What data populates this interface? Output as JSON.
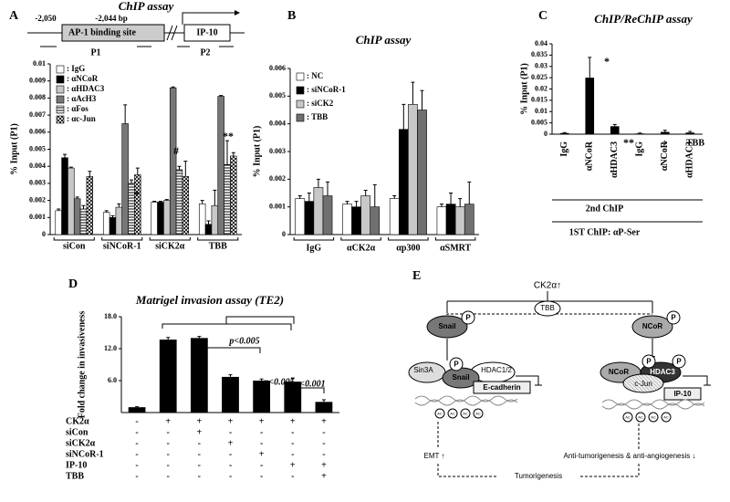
{
  "chart_data": [
    {
      "type": "bar",
      "panel": "A",
      "title": "ChIP assay",
      "ylabel": "% Input (P1)",
      "categories": [
        "siCon",
        "siNCoR-1",
        "siCK2α",
        "TBB"
      ],
      "series": [
        {
          "name": ": IgG",
          "color": "#ffffff",
          "values": [
            0.0014,
            0.0013,
            0.0019,
            0.0018
          ],
          "errors": [
            0.0001,
            0.0001,
            5e-05,
            0.0002
          ]
        },
        {
          "name": ": αNCoR",
          "color": "#000000",
          "values": [
            0.0045,
            0.001,
            0.0019,
            0.0006
          ],
          "errors": [
            0.0002,
            0.0001,
            5e-05,
            0.0002
          ]
        },
        {
          "name": ": αHDAC3",
          "color": "#c8c8c8",
          "values": [
            0.0039,
            0.0016,
            0.002,
            0.0017
          ],
          "errors": [
            5e-05,
            0.0002,
            5e-05,
            0.0009
          ]
        },
        {
          "name": ": αAcH3",
          "color": "#777777",
          "values": [
            0.0021,
            0.0065,
            0.0086,
            0.0081
          ],
          "errors": [
            0.0001,
            0.0011,
            5e-05,
            5e-05
          ]
        },
        {
          "name": ": αFos",
          "color": "#ffffff",
          "pattern": "hstripe",
          "values": [
            0.0015,
            0.003,
            0.0038,
            0.0041
          ],
          "errors": [
            0.0002,
            0.0002,
            0.0002,
            0.0014
          ]
        },
        {
          "name": ": αc-Jun",
          "color": "#ffffff",
          "pattern": "cross",
          "values": [
            0.0034,
            0.0035,
            0.0034,
            0.0046
          ],
          "errors": [
            0.0003,
            0.0004,
            0.0009,
            0.0002
          ]
        }
      ],
      "ylim": [
        0,
        0.01
      ],
      "yticks": [
        0,
        0.001,
        0.002,
        0.003,
        0.004,
        0.005,
        0.006,
        0.007,
        0.008,
        0.009,
        0.01
      ],
      "annotations": [
        "*",
        "#",
        "**"
      ]
    },
    {
      "type": "bar",
      "panel": "B",
      "title": "ChIP assay",
      "ylabel": "% Input (P1)",
      "categories": [
        "IgG",
        "αCK2α",
        "αp300",
        "αSMRT"
      ],
      "series": [
        {
          "name": ": NC",
          "color": "#ffffff",
          "values": [
            0.0013,
            0.0011,
            0.0013,
            0.001
          ],
          "errors": [
            0.0001,
            0.0001,
            0.0001,
            0.0001
          ]
        },
        {
          "name": ": siNCoR-1",
          "color": "#000000",
          "values": [
            0.0012,
            0.001,
            0.0038,
            0.0011
          ],
          "errors": [
            0.0003,
            0.0002,
            0.0009,
            0.0004
          ]
        },
        {
          "name": ": siCK2",
          "color": "#c8c8c8",
          "values": [
            0.0017,
            0.0014,
            0.0047,
            0.001
          ],
          "errors": [
            0.0003,
            0.0002,
            0.0008,
            0.0003
          ]
        },
        {
          "name": ": TBB",
          "color": "#707070",
          "values": [
            0.0014,
            0.001,
            0.0045,
            0.0011
          ],
          "errors": [
            0.0005,
            0.0008,
            0.0007,
            0.0008
          ]
        }
      ],
      "ylim": [
        0,
        0.006
      ],
      "yticks": [
        0,
        0.001,
        0.002,
        0.003,
        0.004,
        0.005,
        0.006
      ]
    },
    {
      "type": "bar",
      "panel": "C",
      "title": "ChIP/ReChIP assay",
      "ylabel": "% Input (P1)",
      "categories": [
        "IgG",
        "αNCoR",
        "αHDAC3",
        "IgG",
        "αNCoR",
        "αHDAC3"
      ],
      "values": [
        0.0005,
        0.025,
        0.0035,
        0.0003,
        0.001,
        0.0007
      ],
      "errors": [
        0.0002,
        0.009,
        0.0008,
        0.0002,
        0.0007,
        0.0005
      ],
      "color": "#000000",
      "ylim": [
        0,
        0.04
      ],
      "yticks": [
        0,
        0.005,
        0.01,
        0.015,
        0.02,
        0.025,
        0.03,
        0.035,
        0.04
      ],
      "annotations": [
        "*",
        "**"
      ],
      "groups": {
        "label": "TBB",
        "signs": [
          "–",
          "+"
        ],
        "inner": "2nd ChIP",
        "outer": "1ST ChIP: αP-Ser"
      }
    },
    {
      "type": "bar",
      "panel": "D",
      "title": "Matrigel invasion assay (TE2)",
      "ylabel": "Fold change in invasiveness",
      "categories": [
        null,
        null,
        null,
        null,
        null,
        null,
        null
      ],
      "values": [
        1,
        13.7,
        14,
        6.7,
        6,
        5.8,
        2
      ],
      "errors": [
        0.1,
        0.4,
        0.3,
        0.4,
        0.3,
        0.7,
        0.4
      ],
      "color": "#000000",
      "ylim": [
        0,
        18
      ],
      "yticks": [
        {
          "value": 6,
          "label": "6.0"
        },
        {
          "value": 12,
          "label": "12.0"
        },
        {
          "value": 18,
          "label": "18.0"
        }
      ],
      "annotations": [
        "p<0.005",
        "p<0.005",
        "p<0.001"
      ],
      "treatments": [
        {
          "name": "CK2α",
          "signs": [
            "-",
            "+",
            "+",
            "+",
            "+",
            "+",
            "+"
          ]
        },
        {
          "name": "siCon",
          "signs": [
            "-",
            "-",
            "+",
            "-",
            "-",
            "-",
            "-"
          ]
        },
        {
          "name": "siCK2α",
          "signs": [
            "-",
            "-",
            "-",
            "+",
            "-",
            "-",
            "-"
          ]
        },
        {
          "name": "siNCoR-1",
          "signs": [
            "-",
            "-",
            "-",
            "-",
            "+",
            "-",
            "-"
          ]
        },
        {
          "name": "IP-10",
          "signs": [
            "-",
            "-",
            "-",
            "-",
            "-",
            "+",
            "+"
          ]
        },
        {
          "name": "TBB",
          "signs": [
            "-",
            "-",
            "-",
            "-",
            "-",
            "-",
            "+"
          ]
        }
      ]
    }
  ],
  "promoter": {
    "left": "-2,050",
    "right": "-2,044 bp",
    "site": "AP-1 binding site",
    "gene": "IP-10",
    "p1": "P1",
    "p2": "P2"
  },
  "diagram": {
    "panel": "E",
    "kinase": "CK2α↑",
    "inhibitor": "TBB",
    "snail": "Snail",
    "ncor": "NCoR",
    "phospho": "P",
    "sin3a": "Sin3A",
    "hdac12": "HDAC1/2",
    "ecad": "E-cadherin",
    "hdac3": "HDAC3",
    "cjun": "c-Jun",
    "ip10": "IP-10",
    "ac": "AC",
    "emt": "EMT ↑",
    "anti": "Anti-tumorigenesis & anti-angiogenesis ↓",
    "tumor": "Tumorigenesis"
  }
}
